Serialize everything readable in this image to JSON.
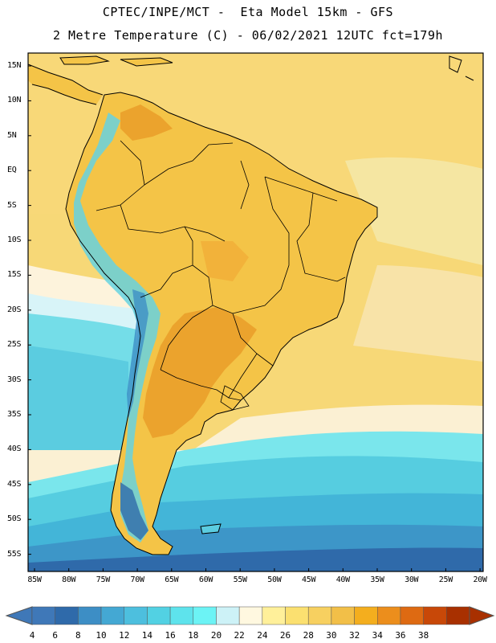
{
  "header": {
    "line1": "CPTEC/INPE/MCT -  Eta Model 15km - GFS",
    "line2": "2 Metre Temperature (C) - 06/02/2021 12UTC fct=179h"
  },
  "map": {
    "lat_labels": [
      "15N",
      "10N",
      "5N",
      "EQ",
      "5S",
      "10S",
      "15S",
      "20S",
      "25S",
      "30S",
      "35S",
      "40S",
      "45S",
      "50S",
      "55S"
    ],
    "lon_labels": [
      "85W",
      "80W",
      "75W",
      "70W",
      "65W",
      "60W",
      "55W",
      "50W",
      "45W",
      "40W",
      "35W",
      "30W",
      "25W",
      "20W"
    ],
    "extent": {
      "lon": [
        -86,
        -20
      ],
      "lat": [
        -58,
        16
      ]
    }
  },
  "colorbar": {
    "labels": [
      "4",
      "6",
      "8",
      "10",
      "12",
      "14",
      "16",
      "18",
      "20",
      "22",
      "24",
      "26",
      "28",
      "30",
      "32",
      "34",
      "36",
      "38"
    ],
    "colors": [
      "#3f78b8",
      "#2f6aaa",
      "#3d8ec5",
      "#44a8d3",
      "#4dbfde",
      "#52d1e3",
      "#5ee3ec",
      "#6cf3f5",
      "#cdf2f7",
      "#fff8e0",
      "#fff09a",
      "#fbe070",
      "#f7d060",
      "#f2bf48",
      "#f4ae1e",
      "#ec8e1c",
      "#de6a12",
      "#c84808",
      "#a83000"
    ],
    "end_left": "#3f78b8",
    "end_right": "#a83000"
  }
}
